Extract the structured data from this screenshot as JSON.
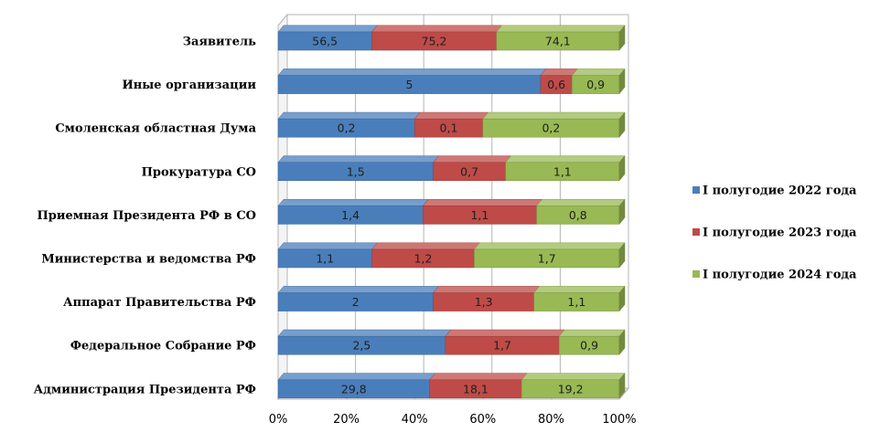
{
  "chart_data": {
    "type": "bar",
    "orientation": "horizontal",
    "stacked": "percent",
    "three_d": true,
    "categories": [
      "Заявитель",
      "Иные организации",
      "Смоленская областная Дума",
      "Прокуратура СО",
      "Приемная Президента  РФ в СО",
      "Министерства и ведомства РФ",
      "Аппарат Правительства  РФ",
      "Федеральное Собрание РФ",
      "Администрация Президента  РФ"
    ],
    "series": [
      {
        "name": "I полугодие 2022 года",
        "color": "#4a7ebb",
        "values": [
          56.5,
          5,
          0.2,
          1.5,
          1.4,
          1.1,
          2,
          2.5,
          29.8
        ],
        "labels": [
          "56,5",
          "5",
          "0,2",
          "1,5",
          "1,4",
          "1,1",
          "2",
          "2,5",
          "29,8"
        ]
      },
      {
        "name": "I полугодие 2023 года",
        "color": "#be4b48",
        "values": [
          75.2,
          0.6,
          0.1,
          0.7,
          1.1,
          1.2,
          1.3,
          1.7,
          18.1
        ],
        "labels": [
          "75,2",
          "0,6",
          "0,1",
          "0,7",
          "1,1",
          "1,2",
          "1,3",
          "1,7",
          "18,1"
        ]
      },
      {
        "name": "I полугодие 2024 года",
        "color": "#98b954",
        "values": [
          74.1,
          0.9,
          0.2,
          1.1,
          0.8,
          1.7,
          1.1,
          0.9,
          19.2
        ],
        "labels": [
          "74,1",
          "0,9",
          "0,2",
          "1,1",
          "0,8",
          "1,7",
          "1,1",
          "0,9",
          "19,2"
        ]
      }
    ],
    "x_ticks": [
      "0%",
      "20%",
      "40%",
      "60%",
      "80%",
      "100%"
    ],
    "xlim": [
      0,
      100
    ],
    "grid": true,
    "legend_position": "right",
    "title": "",
    "xlabel": "",
    "ylabel": ""
  }
}
